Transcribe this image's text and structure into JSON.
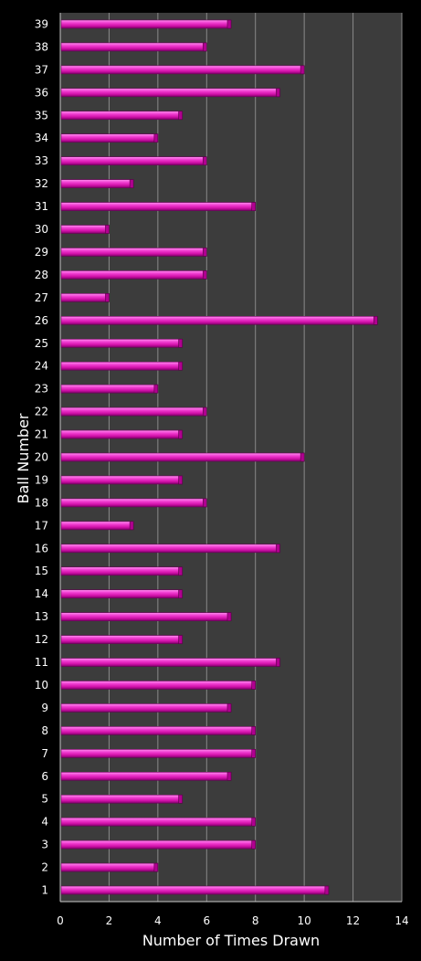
{
  "chart_data": {
    "type": "bar",
    "orientation": "horizontal",
    "xlabel": "Number of Times Drawn",
    "ylabel": "Ball Number",
    "xlim": [
      0,
      14
    ],
    "xticks": [
      "0",
      "2",
      "4",
      "6",
      "8",
      "10",
      "12",
      "14"
    ],
    "grid": true,
    "bar_color": "#e020b8",
    "plot_background": "#3c3c3c",
    "categories": [
      "1",
      "2",
      "3",
      "4",
      "5",
      "6",
      "7",
      "8",
      "9",
      "10",
      "11",
      "12",
      "13",
      "14",
      "15",
      "16",
      "17",
      "18",
      "19",
      "20",
      "21",
      "22",
      "23",
      "24",
      "25",
      "26",
      "27",
      "28",
      "29",
      "30",
      "31",
      "32",
      "33",
      "34",
      "35",
      "36",
      "37",
      "38",
      "39"
    ],
    "values": [
      11,
      4,
      8,
      8,
      5,
      7,
      8,
      8,
      7,
      8,
      9,
      5,
      7,
      5,
      5,
      9,
      3,
      6,
      5,
      10,
      5,
      6,
      4,
      5,
      5,
      13,
      2,
      6,
      6,
      2,
      8,
      3,
      6,
      4,
      5,
      9,
      10,
      6,
      7
    ]
  }
}
